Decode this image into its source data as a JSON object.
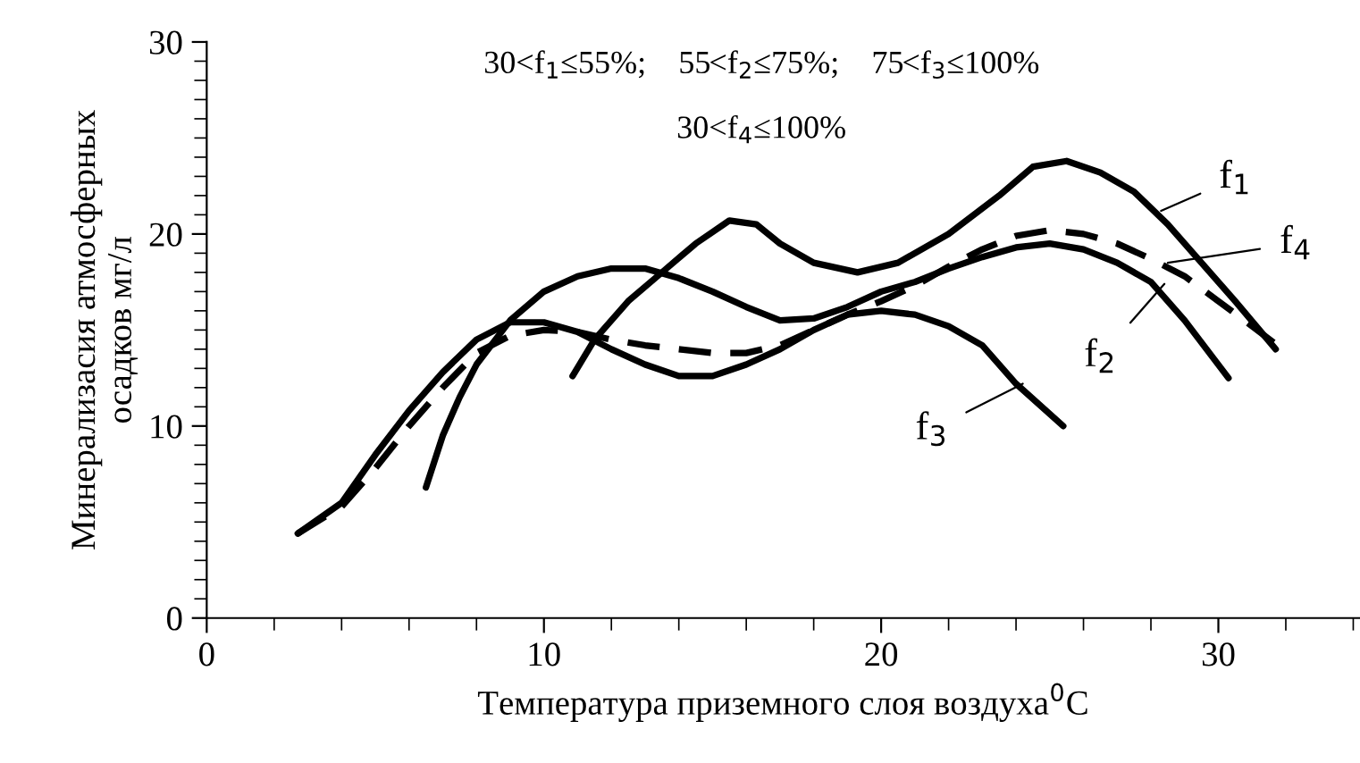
{
  "chart_data": {
    "type": "line",
    "xlabel": "Температура приземного слоя воздуха$^{0}$C",
    "ylabel": "Минерализасия атмосферных\nосадков мг/л",
    "xlim": [
      0,
      34.2
    ],
    "ylim": [
      0,
      30
    ],
    "xticks": [
      0,
      10,
      20,
      30
    ],
    "yticks": [
      0,
      10,
      20,
      30
    ],
    "grid": false,
    "legend": false,
    "marker": "none",
    "annotations": [
      "30<f$_{1}$≤55%;    55<f$_{2}$≤75%;    75<f$_{3}$≤100%",
      "30<f$_{4}$≤100%",
      {
        "text": "f$_{1}$",
        "x": 28.3,
        "y": 21.2
      },
      {
        "text": "f$_{4}$",
        "x": 28.5,
        "y": 18.5
      },
      {
        "text": "f$_{2}$",
        "x": 28.4,
        "y": 17.4
      },
      {
        "text": "f$_{3}$",
        "x": 24.2,
        "y": 12.2
      }
    ],
    "series": [
      {
        "color": "#000000",
        "line_style": "solid",
        "x": [
          10.85,
          11.5,
          12.5,
          13.5,
          14.5,
          15.5,
          16.3,
          17,
          18,
          19.3,
          20.5,
          22,
          23.5,
          24.5,
          25.5,
          26.5,
          27.5,
          28.5,
          29.5,
          30.5,
          31.7
        ],
        "values": [
          12.6,
          14.5,
          16.5,
          18,
          19.5,
          20.7,
          20.5,
          19.5,
          18.5,
          18,
          18.5,
          20,
          22,
          23.5,
          23.8,
          23.2,
          22.2,
          20.5,
          18.5,
          16.5,
          14
        ]
      },
      {
        "color": "#000000",
        "line_style": "solid",
        "x": [
          6.5,
          7,
          7.5,
          8,
          9,
          10,
          11,
          12,
          13,
          14,
          15,
          16,
          17,
          18,
          19,
          20,
          21,
          22,
          23,
          24,
          25,
          26,
          27,
          28,
          29,
          30.3
        ],
        "values": [
          6.8,
          9.5,
          11.5,
          13.2,
          15.5,
          17,
          17.8,
          18.2,
          18.2,
          17.7,
          17,
          16.2,
          15.5,
          15.6,
          16.2,
          17,
          17.5,
          18.2,
          18.8,
          19.3,
          19.5,
          19.2,
          18.5,
          17.5,
          15.5,
          12.5
        ]
      },
      {
        "color": "#000000",
        "line_style": "solid",
        "x": [
          2.7,
          4,
          5,
          6,
          7,
          8,
          9,
          10,
          11,
          12,
          13,
          14,
          15,
          16,
          17,
          18,
          19,
          20,
          21,
          22,
          23,
          24,
          25.4
        ],
        "values": [
          4.4,
          6,
          8.5,
          10.8,
          12.8,
          14.5,
          15.4,
          15.4,
          14.9,
          14,
          13.2,
          12.6,
          12.6,
          13.2,
          14,
          15,
          15.8,
          16,
          15.8,
          15.2,
          14.2,
          12.2,
          10
        ]
      },
      {
        "color": "#000000",
        "line_style": "dashed",
        "x": [
          2.7,
          4,
          5,
          6,
          7,
          8,
          9,
          10,
          11,
          12,
          13,
          14,
          15,
          16,
          17,
          18,
          19,
          20,
          21,
          22,
          23,
          24,
          25,
          26,
          27,
          28,
          29,
          30,
          31,
          31.9
        ],
        "values": [
          4.4,
          5.8,
          7.8,
          10,
          12,
          13.8,
          14.7,
          15,
          14.9,
          14.5,
          14.2,
          14,
          13.8,
          13.8,
          14.2,
          15,
          15.8,
          16.5,
          17.3,
          18.3,
          19.2,
          19.9,
          20.2,
          20,
          19.5,
          18.7,
          17.8,
          16.5,
          15.2,
          14
        ]
      }
    ]
  }
}
